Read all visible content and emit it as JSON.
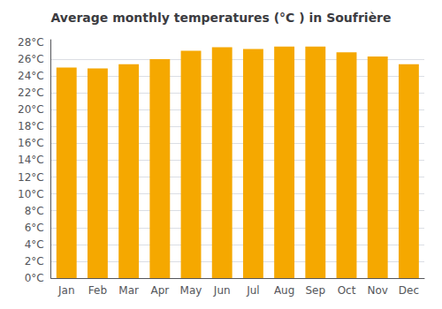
{
  "chart_data": {
    "type": "bar",
    "title": "Average monthly temperatures (°C ) in Soufrière",
    "categories": [
      "Jan",
      "Feb",
      "Mar",
      "Apr",
      "May",
      "Jun",
      "Jul",
      "Aug",
      "Sep",
      "Oct",
      "Nov",
      "Dec"
    ],
    "values": [
      25.0,
      24.9,
      25.4,
      26.0,
      27.0,
      27.4,
      27.2,
      27.5,
      27.5,
      26.8,
      26.3,
      25.4
    ],
    "color": "#F5A800",
    "ylim": [
      0,
      28.3
    ],
    "yticks": [
      {
        "value": 0,
        "label": "0°C"
      },
      {
        "value": 2,
        "label": "2°C"
      },
      {
        "value": 4,
        "label": "4°C"
      },
      {
        "value": 6,
        "label": "6°C"
      },
      {
        "value": 8,
        "label": "8°C"
      },
      {
        "value": 10,
        "label": "10°C"
      },
      {
        "value": 12,
        "label": "12°C"
      },
      {
        "value": 14,
        "label": "14°C"
      },
      {
        "value": 16,
        "label": "16°C"
      },
      {
        "value": 18,
        "label": "18°C"
      },
      {
        "value": 20,
        "label": "20°C"
      },
      {
        "value": 22,
        "label": "22°C"
      },
      {
        "value": 24,
        "label": "24°C"
      },
      {
        "value": 26,
        "label": "26°C"
      },
      {
        "value": 28,
        "label": "28°C"
      }
    ],
    "grid": true
  }
}
